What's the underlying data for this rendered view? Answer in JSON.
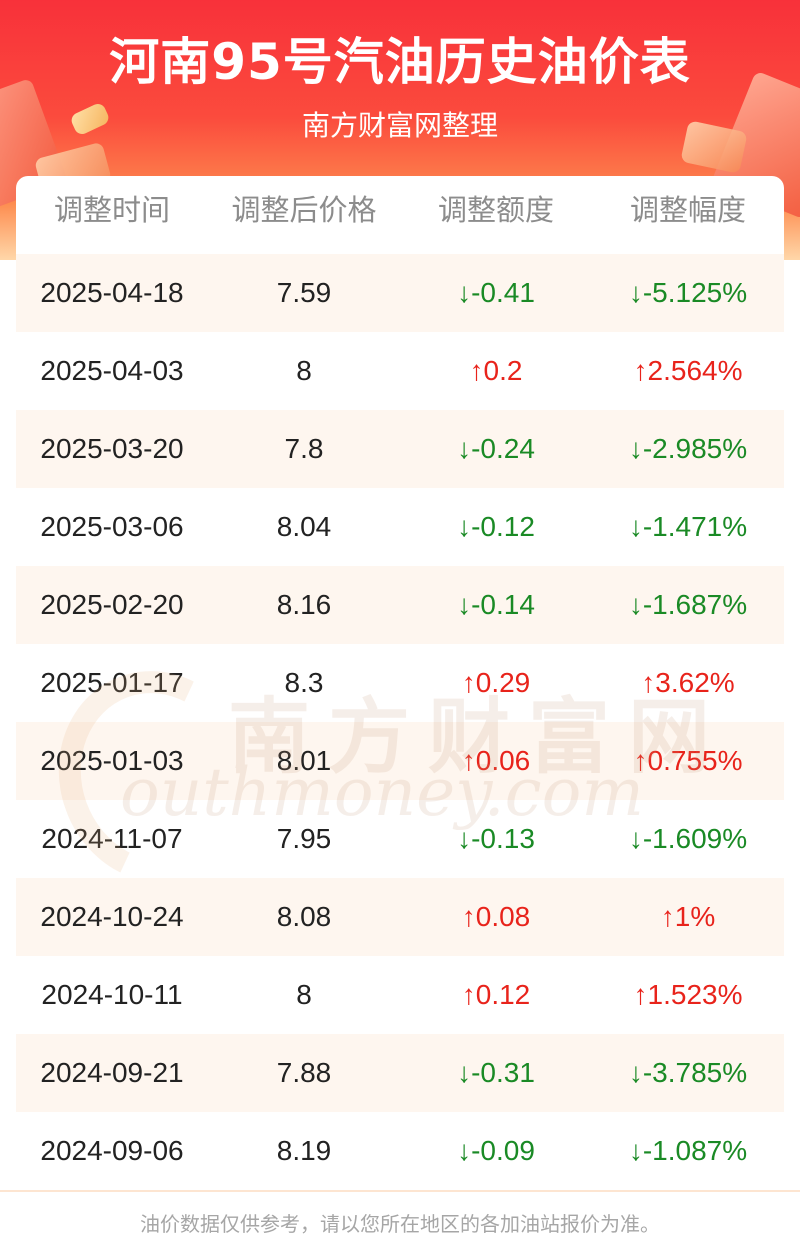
{
  "header": {
    "title": "河南95号汽油历史油价表",
    "subtitle": "南方财富网整理"
  },
  "table": {
    "columns": [
      "调整时间",
      "调整后价格",
      "调整额度",
      "调整幅度"
    ],
    "rows": [
      {
        "date": "2025-04-18",
        "price": "7.59",
        "amount": "↓-0.41",
        "pct": "↓-5.125%",
        "dir": "down"
      },
      {
        "date": "2025-04-03",
        "price": "8",
        "amount": "↑0.2",
        "pct": "↑2.564%",
        "dir": "up"
      },
      {
        "date": "2025-03-20",
        "price": "7.8",
        "amount": "↓-0.24",
        "pct": "↓-2.985%",
        "dir": "down"
      },
      {
        "date": "2025-03-06",
        "price": "8.04",
        "amount": "↓-0.12",
        "pct": "↓-1.471%",
        "dir": "down"
      },
      {
        "date": "2025-02-20",
        "price": "8.16",
        "amount": "↓-0.14",
        "pct": "↓-1.687%",
        "dir": "down"
      },
      {
        "date": "2025-01-17",
        "price": "8.3",
        "amount": "↑0.29",
        "pct": "↑3.62%",
        "dir": "up"
      },
      {
        "date": "2025-01-03",
        "price": "8.01",
        "amount": "↑0.06",
        "pct": "↑0.755%",
        "dir": "up"
      },
      {
        "date": "2024-11-07",
        "price": "7.95",
        "amount": "↓-0.13",
        "pct": "↓-1.609%",
        "dir": "down"
      },
      {
        "date": "2024-10-24",
        "price": "8.08",
        "amount": "↑0.08",
        "pct": "↑1%",
        "dir": "up"
      },
      {
        "date": "2024-10-11",
        "price": "8",
        "amount": "↑0.12",
        "pct": "↑1.523%",
        "dir": "up"
      },
      {
        "date": "2024-09-21",
        "price": "7.88",
        "amount": "↓-0.31",
        "pct": "↓-3.785%",
        "dir": "down"
      },
      {
        "date": "2024-09-06",
        "price": "8.19",
        "amount": "↓-0.09",
        "pct": "↓-1.087%",
        "dir": "down"
      }
    ]
  },
  "watermark": {
    "cn": "南方财富网",
    "en": "outhmoney.com"
  },
  "footer": {
    "note": "油价数据仅供参考，请以您所在地区的各加油站报价为准。"
  },
  "colors": {
    "up": "#e8231b",
    "down": "#1a8a25",
    "header_red": "#f8313a",
    "row_tint": "#fef6ef"
  }
}
